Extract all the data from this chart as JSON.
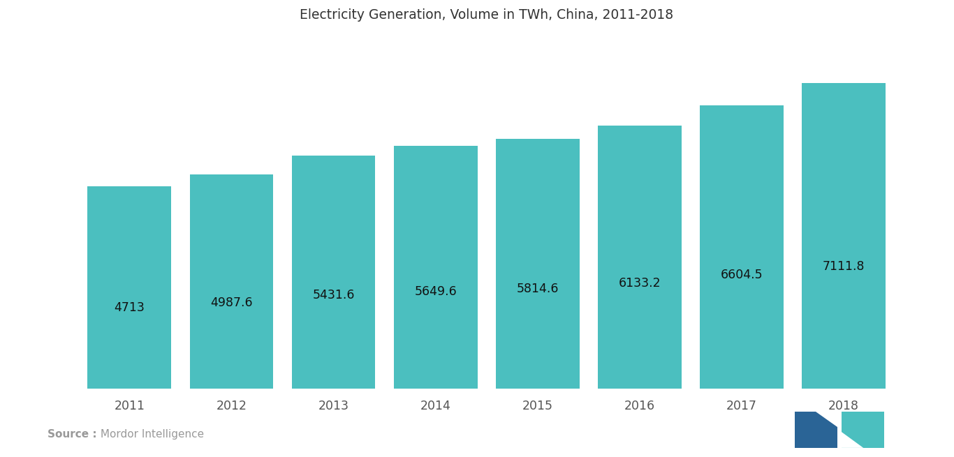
{
  "title": "Electricity Generation, Volume in TWh, China, 2011-2018",
  "years": [
    2011,
    2012,
    2013,
    2014,
    2015,
    2016,
    2017,
    2018
  ],
  "values": [
    4713,
    4987.6,
    5431.6,
    5649.6,
    5814.6,
    6133.2,
    6604.5,
    7111.8
  ],
  "bar_color": "#4BBFBF",
  "label_color": "#111111",
  "bg_color": "#ffffff",
  "title_fontsize": 13.5,
  "label_fontsize": 12.5,
  "tick_fontsize": 12.5,
  "source_bold": "Source :",
  "source_normal": " Mordor Intelligence",
  "source_color": "#999999",
  "ylim_min": 0,
  "ylim_max": 8200,
  "bar_width": 0.82,
  "logo_color_blue": "#2a6496",
  "logo_color_teal": "#4bbfbf"
}
